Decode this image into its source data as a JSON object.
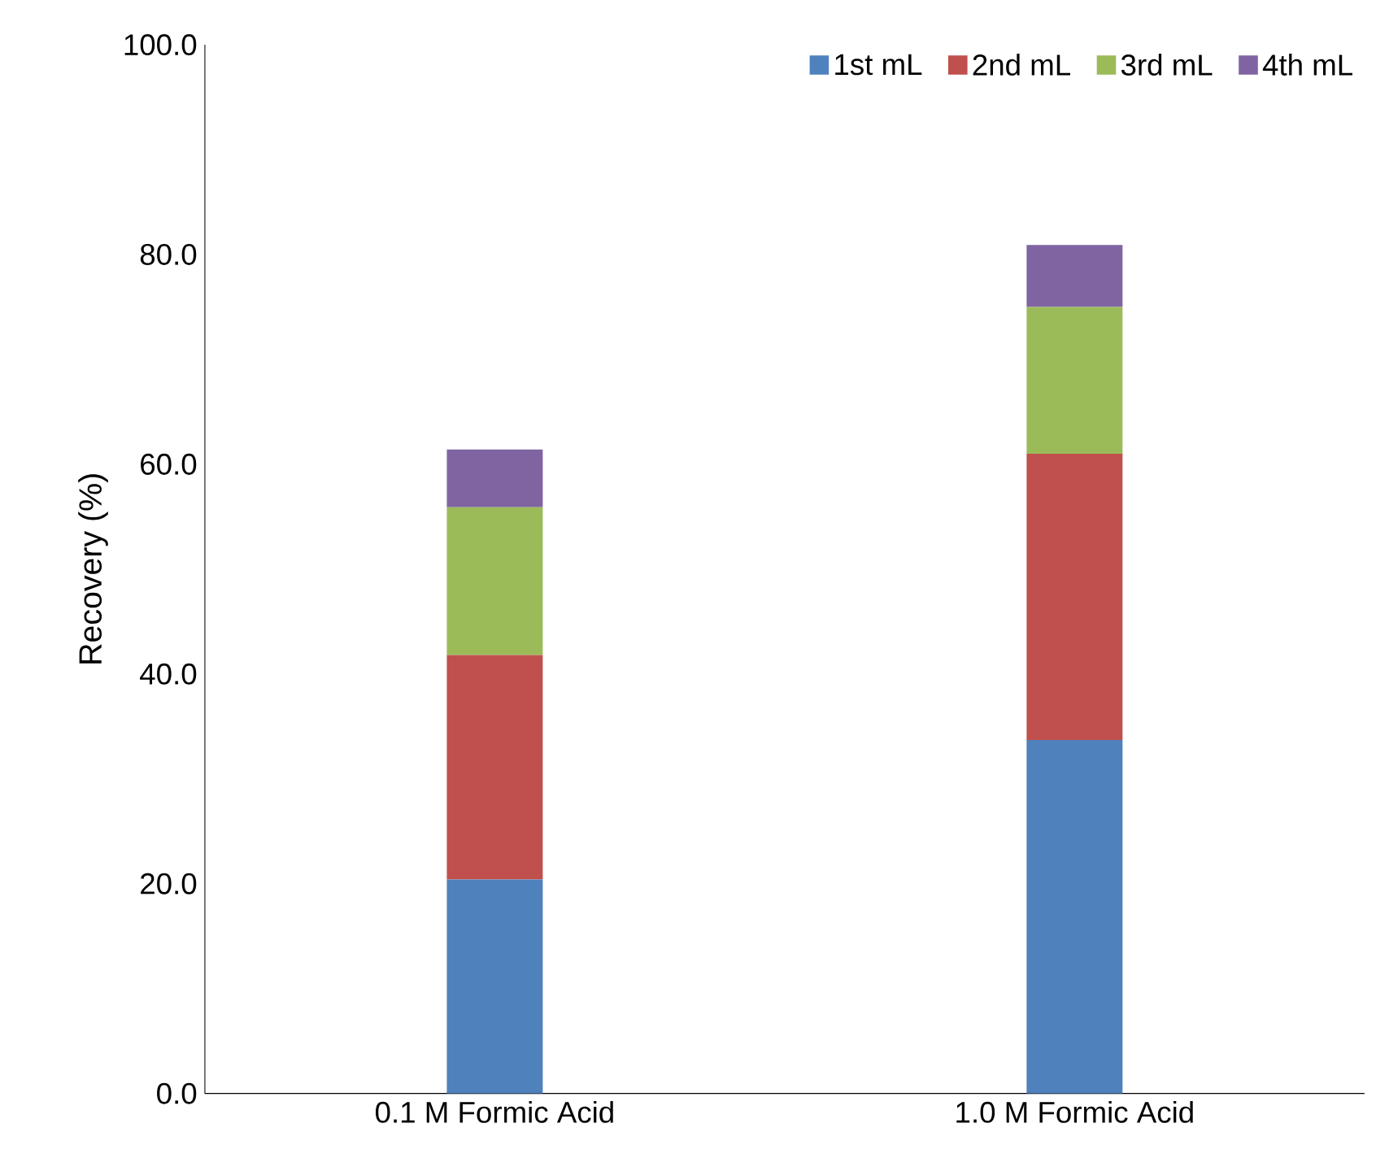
{
  "chart_data": {
    "type": "bar",
    "stacked": true,
    "ylabel": "Recovery (%)",
    "categories": [
      "0.1 M Formic Acid",
      "1.0 M  Formic Acid"
    ],
    "series": [
      {
        "name": "1st mL",
        "color": "#4f81bd",
        "values": [
          20.4,
          33.7
        ]
      },
      {
        "name": "2nd mL",
        "color": "#c0504d",
        "values": [
          21.4,
          27.3
        ]
      },
      {
        "name": "3rd mL",
        "color": "#9bbb59",
        "values": [
          14.1,
          14.0
        ]
      },
      {
        "name": "4th mL",
        "color": "#8064a2",
        "values": [
          5.5,
          5.9
        ]
      }
    ],
    "ylim": [
      0,
      100
    ],
    "yticks": [
      {
        "value": 0,
        "label": "0.0"
      },
      {
        "value": 20,
        "label": "20.0"
      },
      {
        "value": 40,
        "label": "40.0"
      },
      {
        "value": 60,
        "label": "60.0"
      },
      {
        "value": 80,
        "label": "80.0"
      },
      {
        "value": 100,
        "label": "100.0"
      }
    ],
    "grid": false,
    "legend": "top right"
  }
}
